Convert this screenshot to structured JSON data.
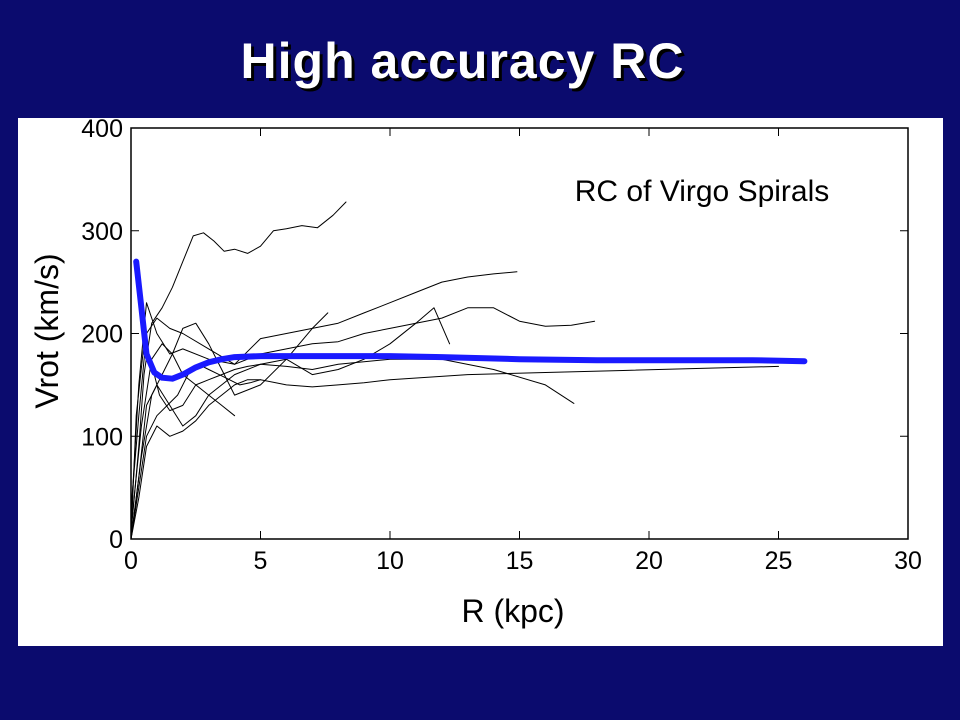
{
  "slide": {
    "title": "High accuracy RC"
  },
  "chart_data": {
    "type": "line",
    "title": "RC of Virgo Spirals",
    "xlabel": "R (kpc)",
    "ylabel": "Vrot (km/s)",
    "xlim": [
      0,
      30
    ],
    "ylim": [
      0,
      400
    ],
    "xticks": [
      0,
      5,
      10,
      15,
      20,
      25,
      30
    ],
    "yticks": [
      0,
      100,
      200,
      300,
      400
    ],
    "grid": false,
    "colors": {
      "mean": "#1a1aff",
      "galaxy": "#000000"
    },
    "series": [
      {
        "role": "mean",
        "x": [
          0.2,
          0.4,
          0.6,
          0.9,
          1.2,
          1.6,
          2.0,
          2.5,
          3.0,
          3.5,
          4.0,
          5.0,
          6.0,
          8.0,
          10.0,
          12.0,
          15.0,
          18.0,
          21.0,
          24.0,
          26.0
        ],
        "y": [
          270,
          225,
          180,
          162,
          157,
          156,
          160,
          167,
          172,
          175,
          177,
          178,
          178,
          178,
          178,
          177,
          175,
          174,
          174,
          174,
          173
        ]
      },
      {
        "role": "galaxy",
        "x": [
          0,
          0.3,
          0.5,
          0.8,
          1.2,
          1.6,
          2.0,
          2.4,
          2.8,
          3.2,
          3.6,
          4.0,
          4.5,
          5.0,
          5.5,
          6.0,
          6.6,
          7.2,
          7.8,
          8.3
        ],
        "y": [
          5,
          90,
          160,
          210,
          225,
          245,
          270,
          295,
          298,
          290,
          280,
          282,
          278,
          285,
          300,
          302,
          305,
          303,
          315,
          328
        ]
      },
      {
        "role": "galaxy",
        "x": [
          0,
          0.3,
          0.6,
          1.0,
          1.5,
          2.0,
          3.0,
          4.0,
          5.0,
          6.0,
          7.0,
          8.0,
          9.0,
          10.0,
          11.0,
          12.0,
          13.0,
          14.0,
          14.9
        ],
        "y": [
          20,
          150,
          230,
          200,
          180,
          185,
          175,
          170,
          195,
          200,
          205,
          210,
          220,
          230,
          240,
          250,
          255,
          258,
          260
        ]
      },
      {
        "role": "galaxy",
        "x": [
          0,
          0.3,
          0.6,
          1.0,
          1.5,
          2.0,
          3.0,
          4.0,
          5.0,
          6.0,
          7.0,
          8.0,
          9.0,
          10.0,
          11.0,
          12.0,
          13.0,
          14.0,
          15.0,
          16.0,
          17.0,
          17.9
        ],
        "y": [
          30,
          120,
          200,
          215,
          205,
          200,
          185,
          170,
          180,
          185,
          190,
          192,
          200,
          205,
          210,
          215,
          225,
          225,
          212,
          207,
          208,
          212
        ]
      },
      {
        "role": "galaxy",
        "x": [
          0,
          0.4,
          0.8,
          1.2,
          1.6,
          2.0,
          2.5,
          3.0,
          3.5,
          4.0,
          4.5,
          5.0,
          6.0,
          7.0,
          8.0,
          10.0,
          12.0,
          14.0,
          16.0,
          17.1
        ],
        "y": [
          10,
          110,
          175,
          190,
          180,
          160,
          150,
          155,
          160,
          165,
          168,
          170,
          168,
          165,
          170,
          175,
          175,
          165,
          150,
          132
        ]
      },
      {
        "role": "galaxy",
        "x": [
          0,
          0.3,
          0.6,
          1.0,
          1.5,
          2.0,
          2.5,
          3.0,
          3.5,
          4.0,
          5.0,
          6.0,
          7.0,
          8.0,
          9.0,
          10.0,
          11.0,
          11.7,
          12.3
        ],
        "y": [
          0,
          60,
          130,
          150,
          130,
          110,
          120,
          140,
          150,
          160,
          170,
          175,
          160,
          165,
          175,
          190,
          210,
          225,
          190
        ]
      },
      {
        "role": "galaxy",
        "x": [
          0,
          0.3,
          0.6,
          1.0,
          1.5,
          2.0,
          2.5,
          3.0,
          3.5,
          4.0,
          4.5,
          5.0,
          6.0,
          7.0,
          8.0,
          9.0,
          10.0,
          13.0,
          16.0,
          19.0,
          22.0,
          25.0
        ],
        "y": [
          0,
          40,
          90,
          110,
          100,
          105,
          115,
          130,
          140,
          150,
          155,
          155,
          150,
          148,
          150,
          152,
          155,
          160,
          162,
          164,
          166,
          168
        ]
      },
      {
        "role": "galaxy",
        "x": [
          0,
          0.4,
          0.8,
          1.2,
          1.6,
          2.0,
          2.5,
          3.0,
          3.5,
          4.0,
          5.0,
          6.0,
          7.0,
          7.6
        ],
        "y": [
          0,
          80,
          140,
          160,
          180,
          205,
          210,
          190,
          165,
          140,
          150,
          175,
          205,
          220
        ]
      },
      {
        "role": "galaxy",
        "x": [
          0,
          0.3,
          0.6,
          1.0,
          1.4,
          1.8,
          2.2,
          2.6,
          3.0,
          3.4,
          3.8,
          4.2,
          4.6,
          5.0
        ],
        "y": [
          0,
          50,
          100,
          120,
          130,
          140,
          160,
          170,
          165,
          160,
          155,
          150,
          152,
          155
        ]
      },
      {
        "role": "galaxy",
        "x": [
          0,
          0.2,
          0.5,
          0.8,
          1.1,
          1.5,
          2.0,
          2.5,
          3.0,
          3.5,
          4.0
        ],
        "y": [
          0,
          120,
          190,
          170,
          140,
          125,
          130,
          150,
          140,
          130,
          120
        ]
      }
    ]
  }
}
